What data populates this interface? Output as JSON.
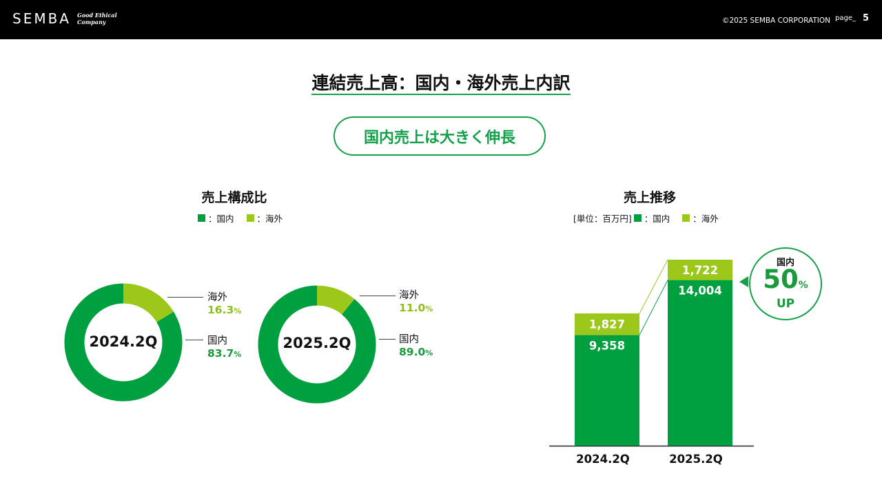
{
  "header": {
    "logo": "SEMBA",
    "tagline_line1": "Good Ethical",
    "tagline_line2": "Company",
    "copyright": "©2025 SEMBA CORPORATION",
    "page_label": "page_",
    "page_number": "5"
  },
  "title": "連結売上高：国内・海外売上内訳",
  "highlight": "国内売上は大きく伸長",
  "colors": {
    "domestic": "#00a040",
    "overseas": "#9cc81c",
    "accent": "#14a049"
  },
  "composition": {
    "title": "売上構成比",
    "legend_domestic": "：国内",
    "legend_overseas": "：海外"
  },
  "trend": {
    "title": "売上推移",
    "unit": "[単位：百万円]",
    "legend_domestic": "：国内",
    "legend_overseas": "：海外"
  },
  "callout": {
    "line1": "国内",
    "value": "50",
    "unit": "%",
    "line3": "UP"
  },
  "chart_data": [
    {
      "type": "pie",
      "variant": "donut",
      "center_label": "2024.2Q",
      "slices": [
        {
          "name": "海外",
          "value": 16.3,
          "label": "16.3",
          "unit": "%"
        },
        {
          "name": "国内",
          "value": 83.7,
          "label": "83.7",
          "unit": "%"
        }
      ]
    },
    {
      "type": "pie",
      "variant": "donut",
      "center_label": "2025.2Q",
      "slices": [
        {
          "name": "海外",
          "value": 11.0,
          "label": "11.0",
          "unit": "%"
        },
        {
          "name": "国内",
          "value": 89.0,
          "label": "89.0",
          "unit": "%"
        }
      ]
    },
    {
      "type": "bar",
      "stacked": true,
      "categories": [
        "2024.2Q",
        "2025.2Q"
      ],
      "series": [
        {
          "name": "国内",
          "values": [
            9358,
            14004
          ],
          "labels": [
            "9,358",
            "14,004"
          ]
        },
        {
          "name": "海外",
          "values": [
            1827,
            1722
          ],
          "labels": [
            "1,827",
            "1,722"
          ]
        }
      ]
    }
  ]
}
